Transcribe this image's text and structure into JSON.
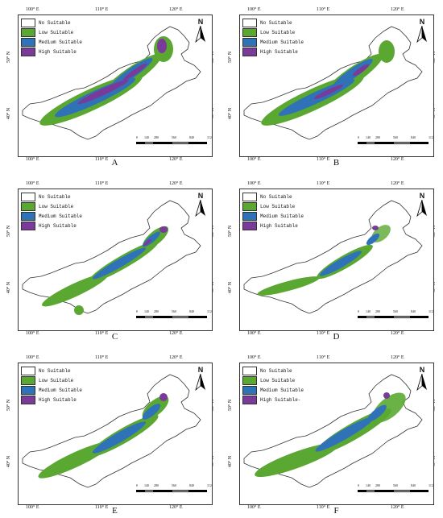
{
  "legend": {
    "items": [
      {
        "label": "No Suitable",
        "color": "#ffffff"
      },
      {
        "label": "Low Suitable",
        "color": "#5aa832"
      },
      {
        "label": "Medium Suitable",
        "color": "#2f72b8"
      },
      {
        "label": "High Suitable",
        "color": "#7a3a9a"
      }
    ]
  },
  "lon_top": [
    "100° E",
    "110° E",
    "120° E"
  ],
  "lon_bottom": [
    "100° E",
    "110° E",
    "120° E"
  ],
  "lat_left": [
    "50° N",
    "40° N"
  ],
  "lat_right": [
    "50° N",
    "40° N"
  ],
  "north_label": "N",
  "scale_ticks": [
    "0",
    "140",
    "280",
    "560",
    "840",
    "1120"
  ],
  "scale_unit": "",
  "panels": [
    {
      "label": "A",
      "legend_high": "High Suitable"
    },
    {
      "label": "B",
      "legend_high": "High Suitable"
    },
    {
      "label": "C",
      "legend_high": "High Suitable"
    },
    {
      "label": "D",
      "legend_high": "High Suitable"
    },
    {
      "label": "E",
      "legend_high": "High Suitable"
    },
    {
      "label": "F",
      "legend_high": "High Suitable-"
    }
  ]
}
